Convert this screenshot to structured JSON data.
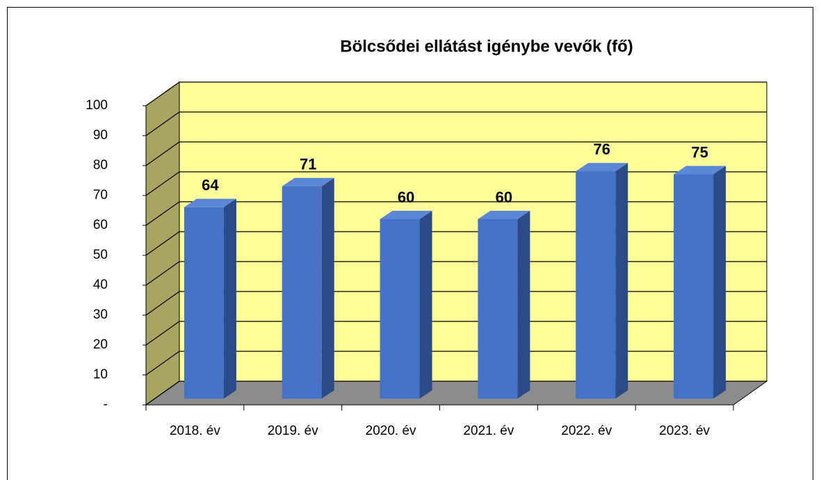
{
  "chart_data": {
    "type": "bar3d",
    "title": "Bölcsődei ellátást igénybe vevők (fő)",
    "categories": [
      "2018. év",
      "2019. év",
      "2020. év",
      "2021. év",
      "2022. év",
      "2023. év"
    ],
    "values": [
      64,
      71,
      60,
      60,
      76,
      75
    ],
    "color": "#4472c4",
    "ylim": [
      0,
      100
    ],
    "yticks": [
      {
        "value": 0,
        "label": "-"
      },
      10,
      20,
      30,
      40,
      50,
      60,
      70,
      80,
      90,
      100
    ],
    "grid": true
  }
}
